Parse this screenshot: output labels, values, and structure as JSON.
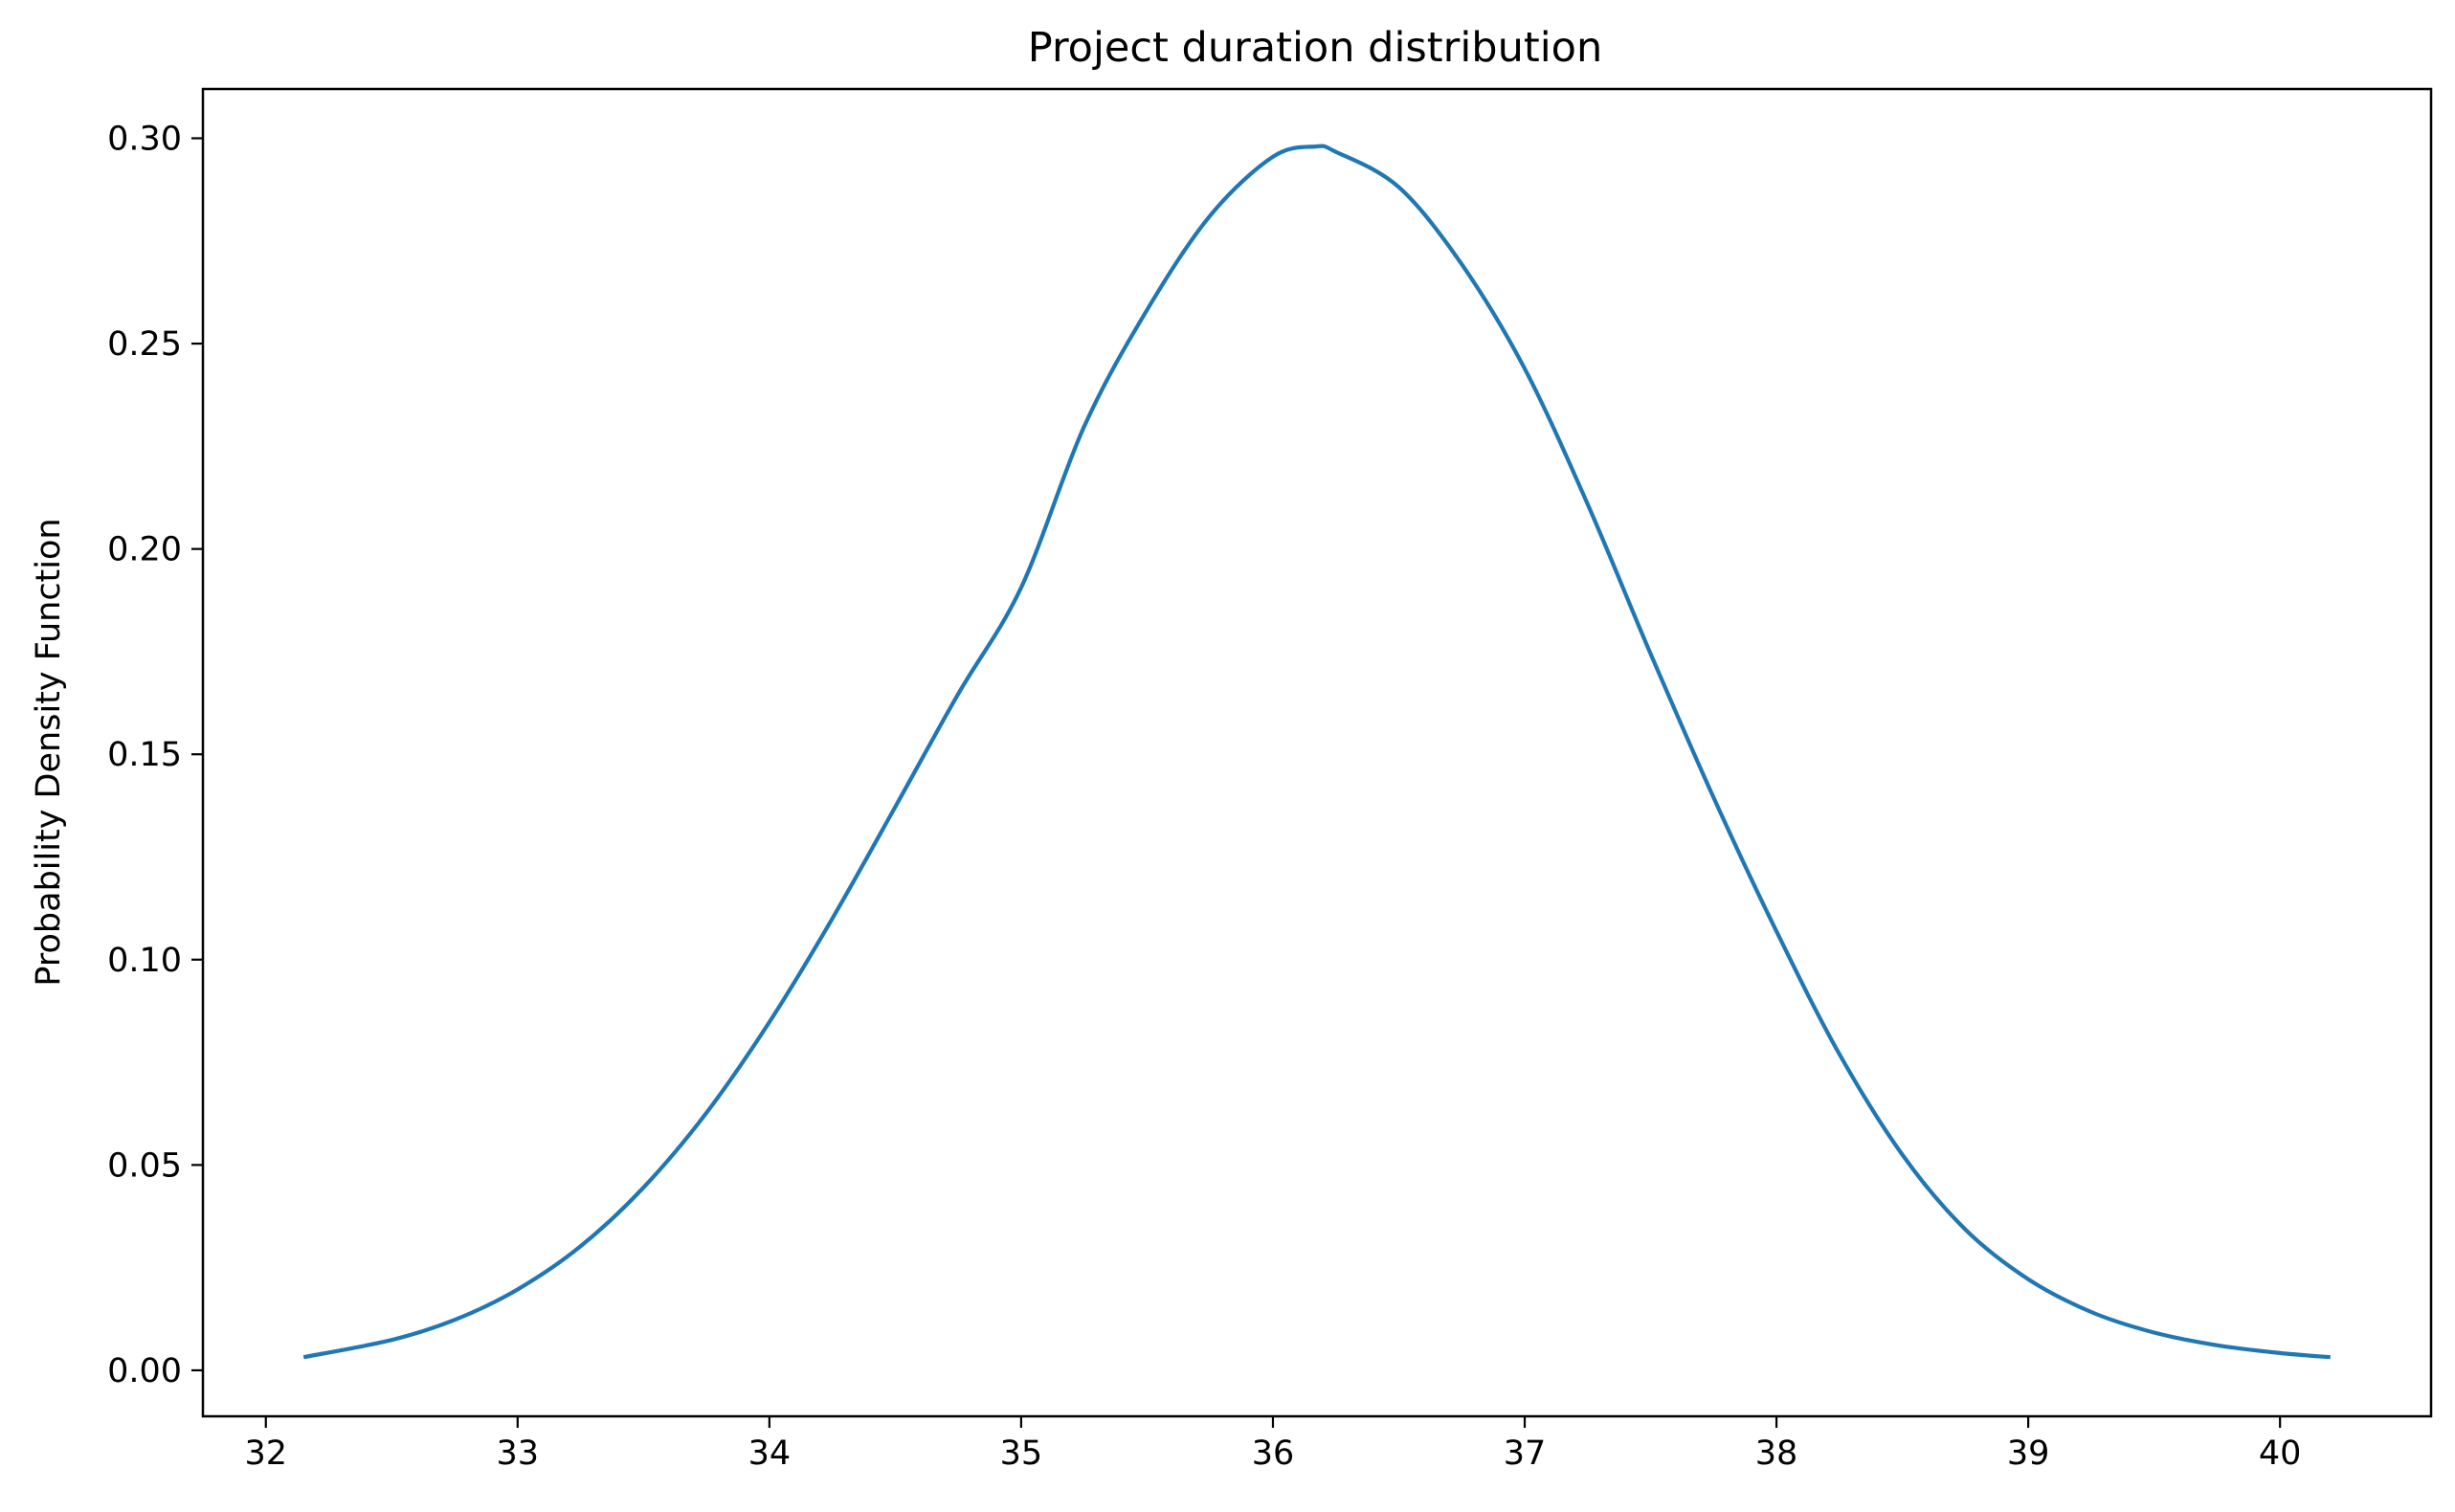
{
  "chart_data": {
    "type": "line",
    "title": "Project duration distribution",
    "xlabel": "",
    "ylabel": "Probability Density Function",
    "xlim": [
      31.75,
      40.6
    ],
    "ylim": [
      -0.0112,
      0.312
    ],
    "xticks": [
      32,
      33,
      34,
      35,
      36,
      37,
      38,
      39,
      40
    ],
    "xtick_labels": [
      "32",
      "33",
      "34",
      "35",
      "36",
      "37",
      "38",
      "39",
      "40"
    ],
    "yticks": [
      0.0,
      0.05,
      0.1,
      0.15,
      0.2,
      0.25,
      0.3
    ],
    "ytick_labels": [
      "0.00",
      "0.05",
      "0.10",
      "0.15",
      "0.20",
      "0.25",
      "0.30"
    ],
    "grid": false,
    "series": [
      {
        "color": "#1f77b4",
        "x": [
          32.15,
          32.5,
          32.75,
          33.0,
          33.25,
          33.5,
          33.75,
          34.0,
          34.25,
          34.5,
          34.75,
          35.0,
          35.25,
          35.5,
          35.75,
          36.0,
          36.17,
          36.25,
          36.5,
          36.75,
          37.0,
          37.25,
          37.5,
          37.75,
          38.0,
          38.25,
          38.5,
          38.75,
          39.0,
          39.25,
          39.5,
          39.75,
          40.0,
          40.2
        ],
        "y": [
          0.0032,
          0.0074,
          0.0123,
          0.0197,
          0.0302,
          0.0445,
          0.0627,
          0.0848,
          0.11,
          0.1372,
          0.1647,
          0.1906,
          0.2298,
          0.2582,
          0.2811,
          0.2955,
          0.298,
          0.2967,
          0.2881,
          0.2693,
          0.2439,
          0.2109,
          0.1745,
          0.1395,
          0.1069,
          0.077,
          0.0525,
          0.0343,
          0.0222,
          0.0142,
          0.0092,
          0.0061,
          0.0042,
          0.0032
        ]
      }
    ]
  }
}
